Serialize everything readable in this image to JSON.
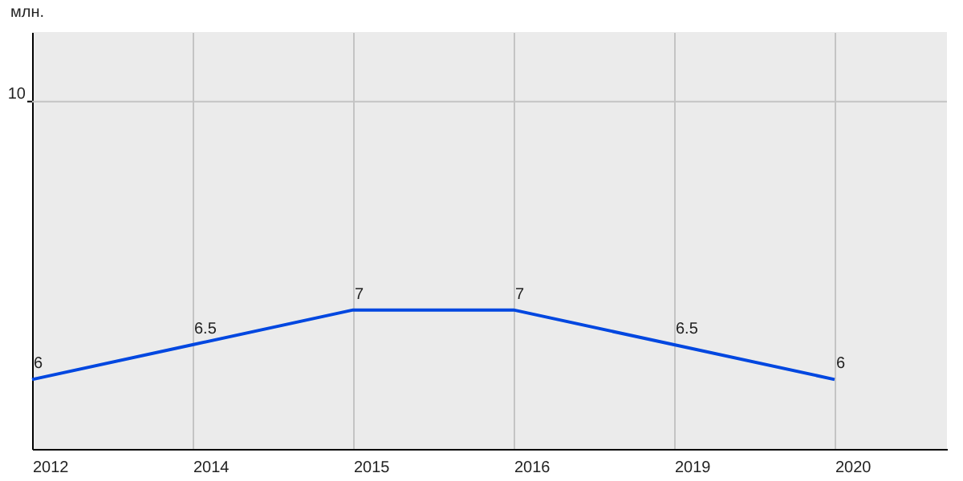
{
  "chart_data": {
    "type": "line",
    "ylabel": "млн.",
    "categories": [
      "2012",
      "2014",
      "2015",
      "2016",
      "2019",
      "2020"
    ],
    "series": [
      {
        "color": "#0047e0",
        "values": [
          6,
          6.5,
          7,
          7,
          6.5,
          6
        ]
      }
    ],
    "ylim": [
      5,
      11
    ],
    "ref_lines": [
      {
        "axis": "y",
        "value": 10,
        "label": "10",
        "color": "#c4c4c4"
      }
    ],
    "grid": "x",
    "data_labels": true,
    "marker": "none",
    "line_style": "solid"
  }
}
